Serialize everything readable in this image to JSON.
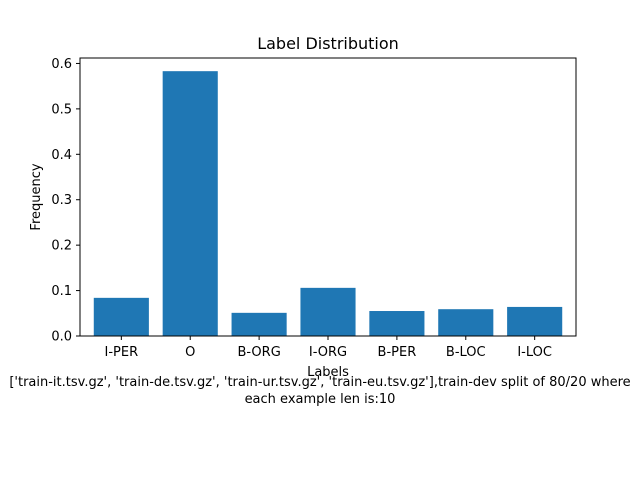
{
  "chart_data": {
    "type": "bar",
    "title": "Label Distribution",
    "xlabel": "Labels",
    "ylabel": "Frequency",
    "categories": [
      "I-PER",
      "O",
      "B-ORG",
      "I-ORG",
      "B-PER",
      "B-LOC",
      "I-LOC"
    ],
    "values": [
      0.084,
      0.583,
      0.051,
      0.106,
      0.055,
      0.059,
      0.064
    ],
    "ylim": [
      0,
      0.612
    ],
    "yticks": [
      "0.0",
      "0.1",
      "0.2",
      "0.3",
      "0.4",
      "0.5",
      "0.6"
    ],
    "grid": false,
    "bar_color": "#1f77b4",
    "caption": [
      "['train-it.tsv.gz', 'train-de.tsv.gz', 'train-ur.tsv.gz', 'train-eu.tsv.gz'],train-dev split of 80/20 where",
      "each example len is:10"
    ]
  }
}
